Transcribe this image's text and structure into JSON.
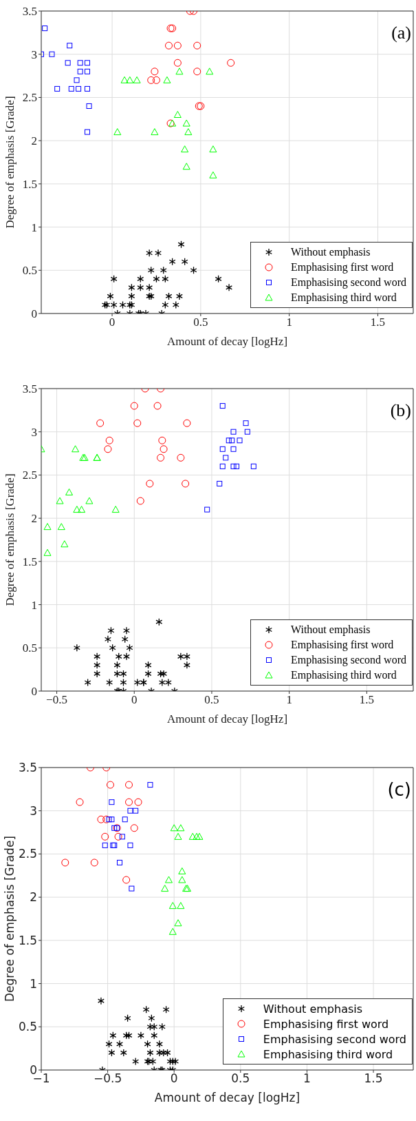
{
  "chart_data": [
    {
      "type": "scatter",
      "xlabel": "Amount of decay [logHz]",
      "ylabel": "Degree of emphasis [Grade]",
      "annotations": [
        "(a)"
      ],
      "xlim": [
        -0.4,
        1.7
      ],
      "xticks": [
        0,
        0.5,
        1,
        1.5
      ],
      "ylim": [
        0,
        3.5
      ],
      "yticks": [
        0,
        0.5,
        1,
        1.5,
        2,
        2.5,
        3,
        3.5
      ],
      "grid": true,
      "legend": "bottom right",
      "series": [
        {
          "name": "Without emphasis",
          "color": "#000000",
          "marker": "cross",
          "x": [
            -0.04,
            -0.03,
            0.01,
            -0.01,
            0.01,
            0.06,
            0.1,
            0.11,
            0.03,
            0.1,
            0.15,
            0.16,
            0.19,
            0.28,
            0.11,
            0.11,
            0.16,
            0.16,
            0.21,
            0.26,
            0.22,
            0.21,
            0.21,
            0.22,
            0.25,
            0.29,
            0.3,
            0.34,
            0.32,
            0.3,
            0.39,
            0.41,
            0.38,
            0.36,
            0.46,
            0.6,
            0.66
          ],
          "values": [
            0.1,
            0.1,
            0.4,
            0.2,
            0.1,
            0.1,
            0.1,
            0.1,
            0,
            0,
            0,
            0,
            0,
            0,
            0.3,
            0.2,
            0.4,
            0.3,
            0.7,
            0.7,
            0.5,
            0.3,
            0.2,
            0.2,
            0.4,
            0.5,
            0.4,
            0.6,
            0.2,
            0.1,
            0.8,
            0.6,
            0.2,
            0.1,
            0.5,
            0.4,
            0.3
          ]
        },
        {
          "name": "Emphasising first word",
          "color": "#ff0000",
          "marker": "circle",
          "x": [
            0.44,
            0.46,
            0.33,
            0.34,
            0.32,
            0.37,
            0.48,
            0.37,
            0.67,
            0.24,
            0.48,
            0.22,
            0.25,
            0.49,
            0.5,
            0.33
          ],
          "values": [
            3.5,
            3.5,
            3.3,
            3.3,
            3.1,
            3.1,
            3.1,
            2.9,
            2.9,
            2.8,
            2.8,
            2.7,
            2.7,
            2.4,
            2.4,
            2.2
          ]
        },
        {
          "name": "Emphasising second word",
          "color": "#0000ff",
          "marker": "square",
          "x": [
            -0.38,
            -0.4,
            -0.34,
            -0.24,
            -0.25,
            -0.18,
            -0.14,
            -0.18,
            -0.14,
            -0.2,
            -0.31,
            -0.23,
            -0.19,
            -0.14,
            -0.13,
            -0.14
          ],
          "values": [
            3.3,
            3.0,
            3.0,
            3.1,
            2.9,
            2.9,
            2.9,
            2.8,
            2.8,
            2.7,
            2.6,
            2.6,
            2.6,
            2.6,
            2.4,
            2.1
          ]
        },
        {
          "name": "Emphasising third word",
          "color": "#00ff00",
          "marker": "triangle",
          "x": [
            0.38,
            0.55,
            0.07,
            0.1,
            0.14,
            0.31,
            0.37,
            0.34,
            0.42,
            0.03,
            0.24,
            0.43,
            0.41,
            0.57,
            0.42,
            0.57
          ],
          "values": [
            2.8,
            2.8,
            2.7,
            2.7,
            2.7,
            2.7,
            2.3,
            2.2,
            2.2,
            2.1,
            2.1,
            2.1,
            1.9,
            1.9,
            1.7,
            1.6
          ]
        }
      ]
    },
    {
      "type": "scatter",
      "xlabel": "Amount of decay [logHz]",
      "ylabel": "Degree of emphasis [Grade]",
      "annotations": [
        "(b)"
      ],
      "xlim": [
        -0.6,
        1.8
      ],
      "xticks": [
        -0.5,
        0,
        0.5,
        1,
        1.5
      ],
      "ylim": [
        0,
        3.5
      ],
      "yticks": [
        0,
        0.5,
        1,
        1.5,
        2,
        2.5,
        3,
        3.5
      ],
      "grid": true,
      "legend": "bottom right",
      "series": [
        {
          "name": "Without emphasis",
          "color": "#000000",
          "marker": "cross",
          "x": [
            -0.37,
            -0.3,
            -0.24,
            -0.24,
            -0.24,
            -0.15,
            -0.17,
            -0.14,
            -0.1,
            -0.11,
            -0.11,
            -0.16,
            -0.11,
            -0.1,
            -0.07,
            -0.05,
            -0.06,
            -0.03,
            -0.05,
            -0.07,
            -0.07,
            0.02,
            0.06,
            0.06,
            0.09,
            0.09,
            0.11,
            0.16,
            0.17,
            0.19,
            0.18,
            0.22,
            0.26,
            0.3,
            0.34,
            0.34
          ],
          "values": [
            0.5,
            0.1,
            0.4,
            0.3,
            0.2,
            0.7,
            0.6,
            0.5,
            0.4,
            0.3,
            0.2,
            0.1,
            0,
            0,
            0,
            0.7,
            0.6,
            0.5,
            0.4,
            0.2,
            0.1,
            0.1,
            0.1,
            0.1,
            0.3,
            0.2,
            0,
            0.8,
            0.2,
            0.2,
            0.1,
            0.1,
            0,
            0.4,
            0.4,
            0.3
          ]
        },
        {
          "name": "Emphasising first word",
          "color": "#ff0000",
          "marker": "circle",
          "x": [
            0.07,
            0.17,
            0.0,
            0.15,
            -0.22,
            0.02,
            0.34,
            -0.16,
            0.18,
            -0.17,
            0.19,
            0.17,
            0.3,
            0.1,
            0.33,
            0.04
          ],
          "values": [
            3.5,
            3.5,
            3.3,
            3.3,
            3.1,
            3.1,
            3.1,
            2.9,
            2.9,
            2.8,
            2.8,
            2.7,
            2.7,
            2.4,
            2.4,
            2.2
          ]
        },
        {
          "name": "Emphasising second word",
          "color": "#0000ff",
          "marker": "square",
          "x": [
            0.57,
            0.72,
            0.64,
            0.73,
            0.61,
            0.63,
            0.68,
            0.57,
            0.64,
            0.59,
            0.57,
            0.64,
            0.66,
            0.77,
            0.55,
            0.47
          ],
          "values": [
            3.3,
            3.1,
            3.0,
            3.0,
            2.9,
            2.9,
            2.9,
            2.8,
            2.8,
            2.7,
            2.6,
            2.6,
            2.6,
            2.6,
            2.4,
            2.1
          ]
        },
        {
          "name": "Emphasising third word",
          "color": "#00ff00",
          "marker": "triangle",
          "x": [
            -0.6,
            -0.38,
            -0.33,
            -0.32,
            -0.24,
            -0.24,
            -0.42,
            -0.48,
            -0.29,
            -0.37,
            -0.34,
            -0.12,
            -0.56,
            -0.47,
            -0.45,
            -0.56
          ],
          "values": [
            2.8,
            2.8,
            2.7,
            2.7,
            2.7,
            2.7,
            2.3,
            2.2,
            2.2,
            2.1,
            2.1,
            2.1,
            1.9,
            1.9,
            1.7,
            1.6
          ]
        }
      ]
    },
    {
      "type": "scatter",
      "xlabel": "Amount of decay [logHz]",
      "ylabel": "Degree of emphasis [Grade]",
      "annotations": [
        "(c)"
      ],
      "xlim": [
        -1,
        1.8
      ],
      "xticks": [
        -1,
        -0.5,
        0,
        0.5,
        1,
        1.5
      ],
      "ylim": [
        0,
        3.5
      ],
      "yticks": [
        0,
        0.5,
        1,
        1.5,
        2,
        2.5,
        3,
        3.5
      ],
      "grid": true,
      "legend": "bottom right",
      "series": [
        {
          "name": "Without emphasis",
          "color": "#000000",
          "marker": "cross",
          "x": [
            -0.55,
            -0.54,
            -0.49,
            -0.46,
            -0.47,
            -0.41,
            -0.38,
            -0.36,
            -0.34,
            -0.35,
            -0.29,
            -0.25,
            -0.21,
            -0.2,
            -0.2,
            -0.19,
            -0.18,
            -0.17,
            -0.18,
            -0.15,
            -0.15,
            -0.16,
            -0.15,
            -0.11,
            -0.11,
            -0.09,
            -0.1,
            -0.09,
            -0.08,
            -0.05,
            -0.06,
            -0.03,
            -0.01,
            -0.01,
            0.01,
            -0.03
          ],
          "values": [
            0.8,
            0,
            0.3,
            0.4,
            0.2,
            0.3,
            0.2,
            0.4,
            0.4,
            0.6,
            0.1,
            0.4,
            0.7,
            0.3,
            0.1,
            0.1,
            0.2,
            0.6,
            0.5,
            0.5,
            0.4,
            0.1,
            0,
            0.3,
            0.2,
            0.5,
            0,
            0,
            0.2,
            0.2,
            0.7,
            0.1,
            0,
            0.1,
            0.1,
            0
          ]
        },
        {
          "name": "Emphasising first word",
          "color": "#ff0000",
          "marker": "circle",
          "x": [
            -0.63,
            -0.51,
            -0.48,
            -0.34,
            -0.71,
            -0.34,
            -0.27,
            -0.55,
            -0.51,
            -0.43,
            -0.3,
            -0.52,
            -0.42,
            -0.82,
            -0.6,
            -0.36
          ],
          "values": [
            3.5,
            3.5,
            3.3,
            3.3,
            3.1,
            3.1,
            3.1,
            2.9,
            2.9,
            2.8,
            2.8,
            2.7,
            2.7,
            2.4,
            2.4,
            2.2
          ]
        },
        {
          "name": "Emphasising second word",
          "color": "#0000ff",
          "marker": "square",
          "x": [
            -0.18,
            -0.47,
            -0.33,
            -0.29,
            -0.49,
            -0.47,
            -0.37,
            -0.45,
            -0.43,
            -0.39,
            -0.52,
            -0.46,
            -0.45,
            -0.33,
            -0.41,
            -0.32
          ],
          "values": [
            3.3,
            3.1,
            3.0,
            3.0,
            2.9,
            2.9,
            2.9,
            2.8,
            2.8,
            2.7,
            2.6,
            2.6,
            2.6,
            2.6,
            2.4,
            2.1
          ]
        },
        {
          "name": "Emphasising third word",
          "color": "#00ff00",
          "marker": "triangle",
          "x": [
            0.0,
            0.05,
            0.03,
            0.14,
            0.17,
            0.19,
            0.06,
            -0.04,
            0.06,
            -0.07,
            0.09,
            0.1,
            -0.01,
            0.05,
            0.03,
            -0.01
          ],
          "values": [
            2.8,
            2.8,
            2.7,
            2.7,
            2.7,
            2.7,
            2.3,
            2.2,
            2.2,
            2.1,
            2.1,
            2.1,
            1.9,
            1.9,
            1.7,
            1.6
          ]
        }
      ]
    }
  ]
}
